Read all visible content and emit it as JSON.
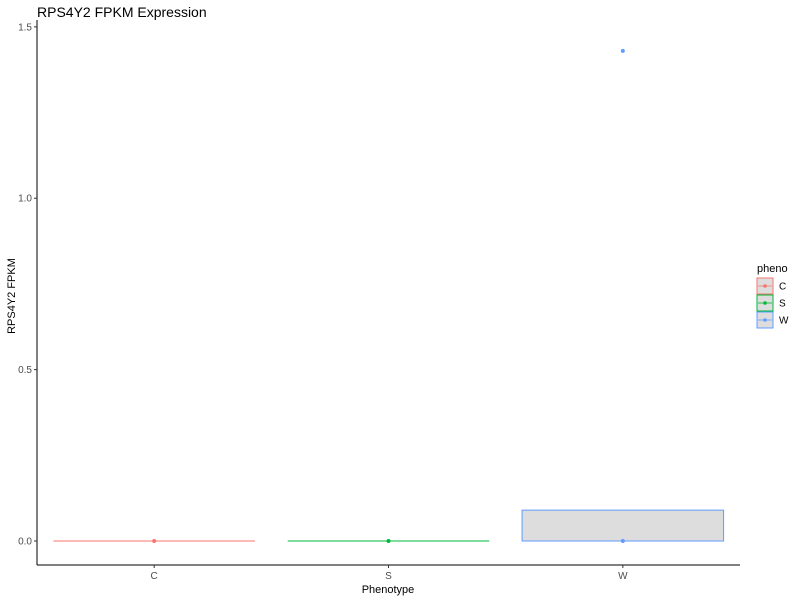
{
  "chart_data": {
    "type": "box",
    "title": "RPS4Y2 FPKM Expression",
    "xlabel": "Phenotype",
    "ylabel": "RPS4Y2 FPKM",
    "categories": [
      "C",
      "S",
      "W"
    ],
    "ylim": [
      -0.07,
      1.52
    ],
    "yticks": [
      "0.0",
      "0.5",
      "1.0",
      "1.5"
    ],
    "grid": false,
    "legend": {
      "title": "pheno",
      "placement": "right",
      "entries": [
        "C",
        "S",
        "W"
      ]
    },
    "series": [
      {
        "name": "C",
        "color": "#F8766D",
        "box": {
          "min": 0.0,
          "q1": 0.0,
          "median": 0.0,
          "q3": 0.0,
          "max": 0.0
        },
        "points": [
          0.0
        ]
      },
      {
        "name": "S",
        "color": "#00BA38",
        "box": {
          "min": 0.0,
          "q1": 0.0,
          "median": 0.0,
          "q3": 0.0,
          "max": 0.0
        },
        "points": [
          0.0
        ]
      },
      {
        "name": "W",
        "color": "#619CFF",
        "box": {
          "min": 0.0,
          "q1": 0.0,
          "median": 0.0,
          "q3": 0.09,
          "max": 0.09
        },
        "points": [
          0.0,
          1.43
        ]
      }
    ],
    "box_fill": "#DDDDDD"
  }
}
